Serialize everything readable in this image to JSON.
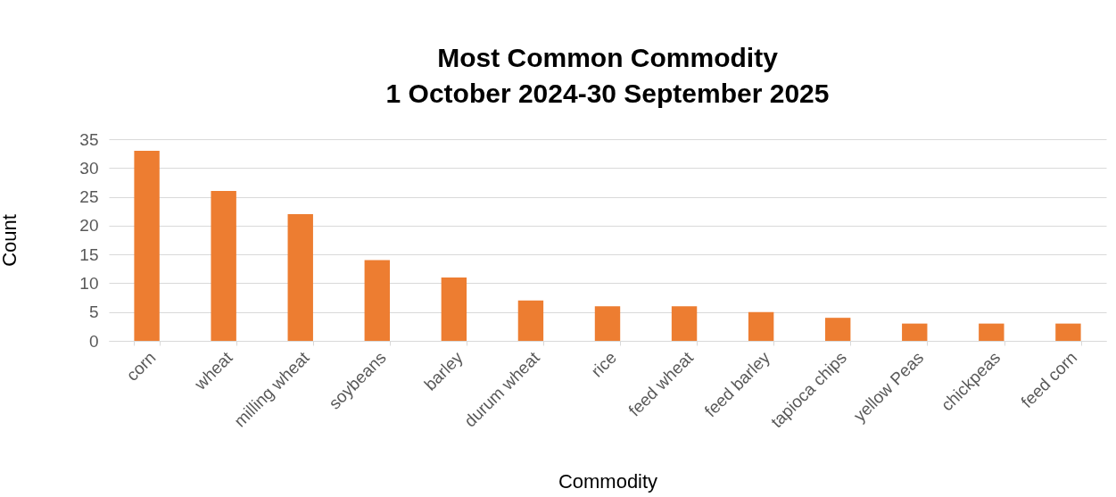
{
  "chart_data": {
    "type": "bar",
    "title": "Most Common Commodity",
    "subtitle": "1 October 2024-30 September 2025",
    "xlabel": "Commodity",
    "ylabel": "Count",
    "categories": [
      "corn",
      "wheat",
      "milling wheat",
      "soybeans",
      "barley",
      "durum wheat",
      "rice",
      "feed wheat",
      "feed barley",
      "tapioca chips",
      "yellow Peas",
      "chickpeas",
      "feed corn"
    ],
    "values": [
      33,
      26,
      22,
      14,
      11,
      7,
      6,
      6,
      5,
      4,
      3,
      3,
      3
    ],
    "color": "#ed7d31",
    "ylim": [
      0,
      35
    ],
    "yticks": [
      0,
      5,
      10,
      15,
      20,
      25,
      30,
      35
    ],
    "grid": "y"
  }
}
